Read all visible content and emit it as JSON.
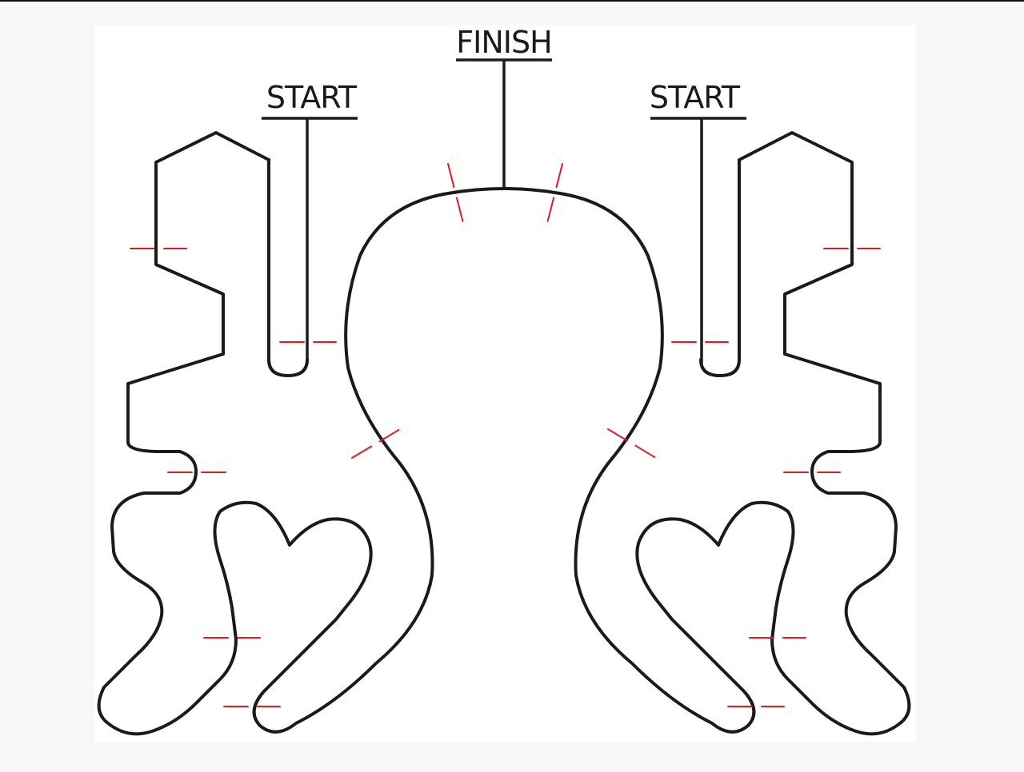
{
  "labels": {
    "finish": "FINISH",
    "start_left": "START",
    "start_right": "START"
  },
  "colors": {
    "track": "#1a1a1a",
    "checkpoint": "#e01b24",
    "panel": "#ffffff",
    "background": "#f7f7f7"
  }
}
